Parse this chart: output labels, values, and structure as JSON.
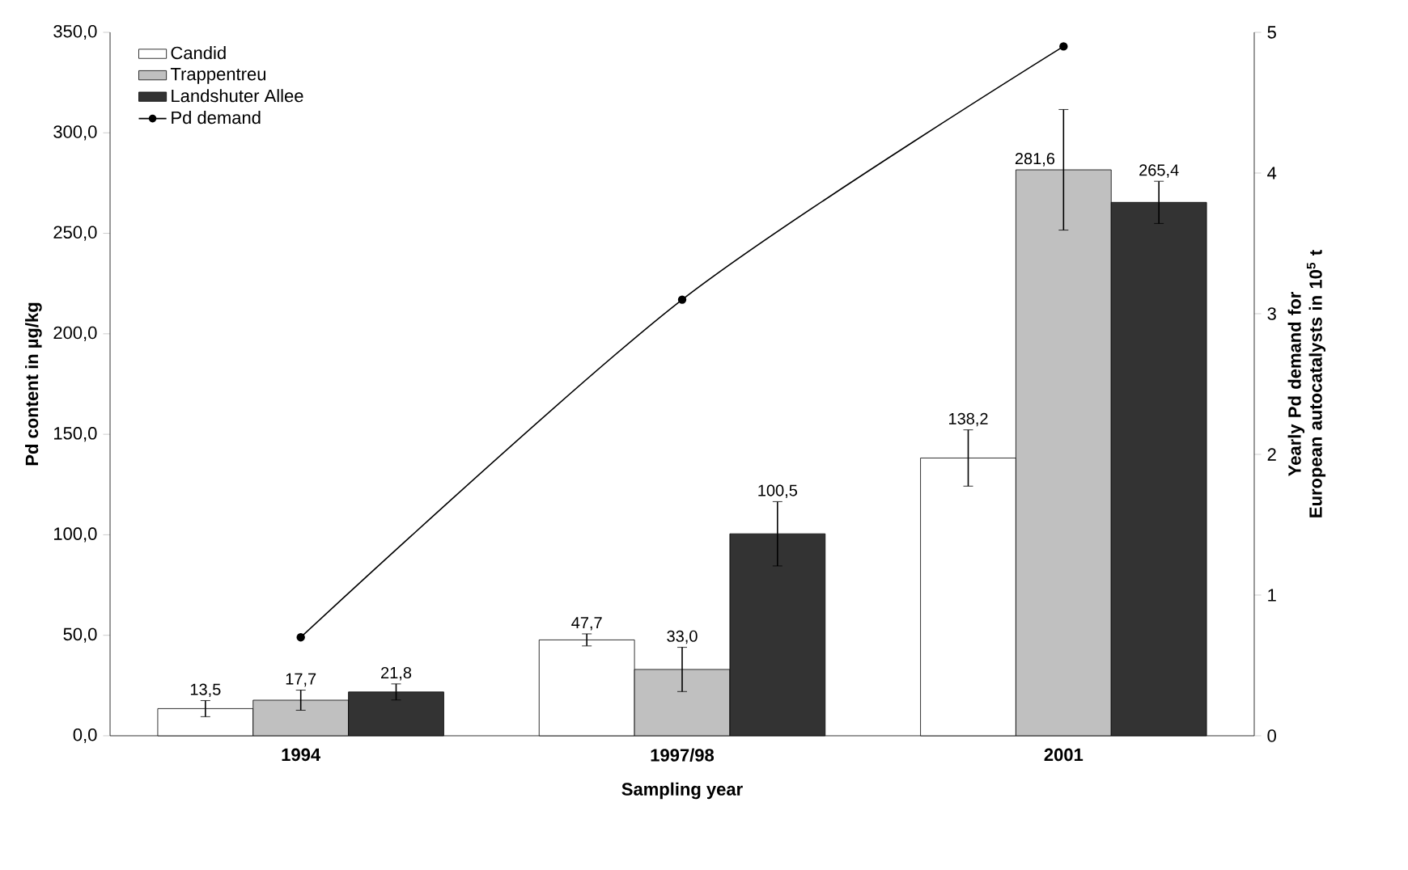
{
  "chart_data": {
    "type": "bar",
    "xlabel": "Sampling year",
    "ylabel": "Pd content in µg/kg",
    "y2label": "Yearly Pd demand for European autocatalysts  in 10$^{5}$ t",
    "categories": [
      "1994",
      "1997/98",
      "2001"
    ],
    "series": [
      {
        "name": "Candid",
        "color": "#ffffff",
        "values": [
          13.5,
          47.7,
          138.2
        ],
        "errors": [
          4,
          3,
          14
        ],
        "value_labels": [
          "13,5",
          "47,7",
          "138,2"
        ]
      },
      {
        "name": "Trappentreu",
        "color": "#c0c0c0",
        "values": [
          17.7,
          33.0,
          281.6
        ],
        "errors": [
          5,
          11,
          30
        ],
        "value_labels": [
          "17,7",
          "33,0",
          "281,6"
        ]
      },
      {
        "name": "Landshuter Allee",
        "color": "#333333",
        "values": [
          21.8,
          100.5,
          265.4
        ],
        "errors": [
          4,
          16,
          10.5
        ],
        "value_labels": [
          "21,8",
          "100,5",
          "265,4"
        ]
      },
      {
        "name": "Pd demand",
        "type": "line",
        "axis": "y2",
        "color": "#000000",
        "marker": "circle",
        "values": [
          0.7,
          3.1,
          4.9
        ]
      }
    ],
    "ylim": [
      0,
      350
    ],
    "yticks": [
      {
        "value": 0,
        "label": "0,0"
      },
      {
        "value": 50,
        "label": "50,0"
      },
      {
        "value": 100,
        "label": "100,0"
      },
      {
        "value": 150,
        "label": "150,0"
      },
      {
        "value": 200,
        "label": "200,0"
      },
      {
        "value": 250,
        "label": "250,0"
      },
      {
        "value": 300,
        "label": "300,0"
      },
      {
        "value": 350,
        "label": "350,0"
      }
    ],
    "y2lim": [
      0,
      5
    ],
    "y2ticks": [
      0,
      1,
      2,
      3,
      4,
      5
    ],
    "legend": "top left",
    "grid": false
  }
}
